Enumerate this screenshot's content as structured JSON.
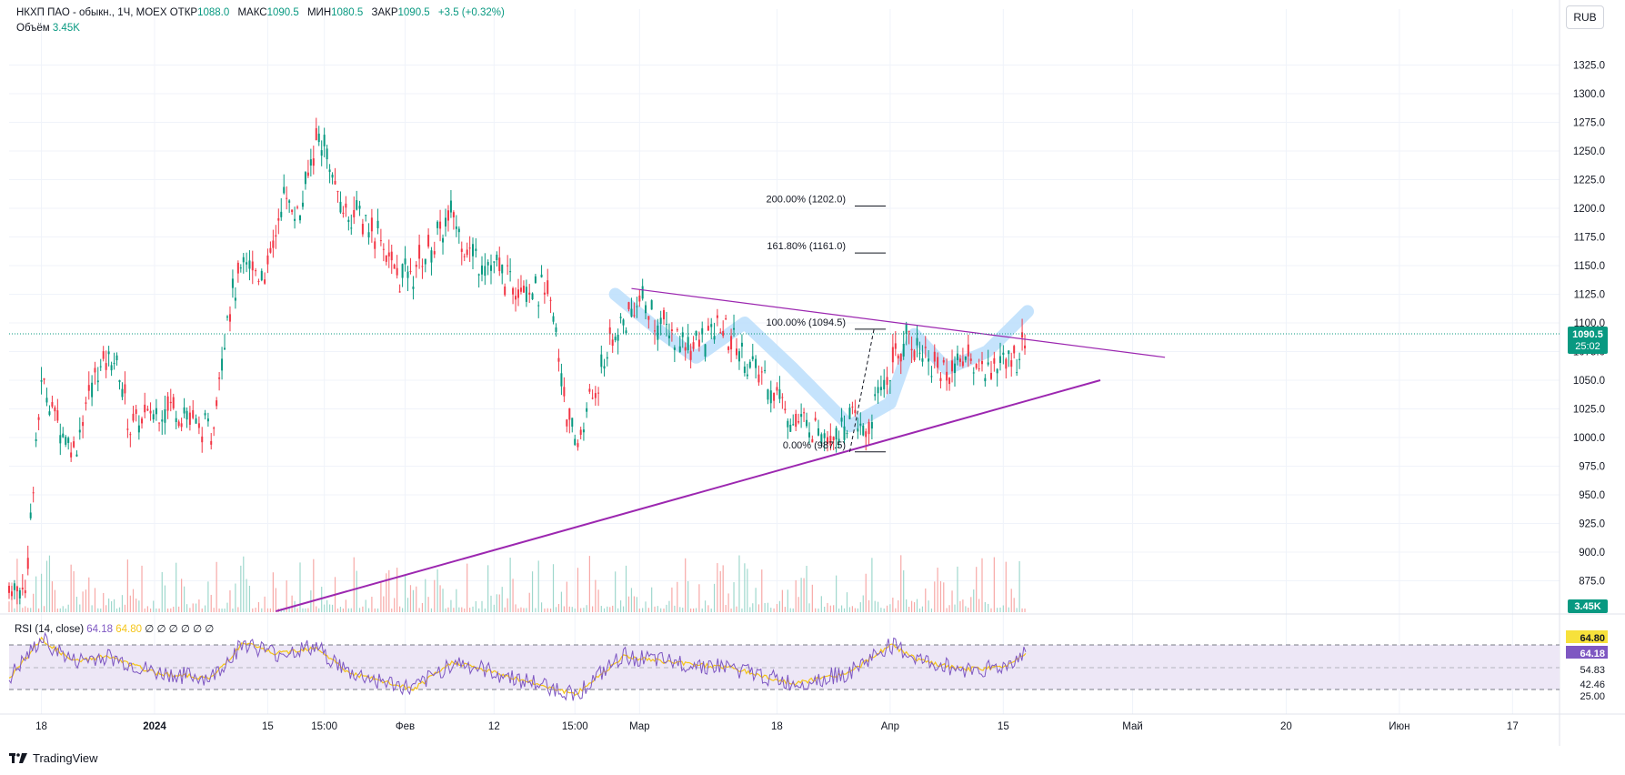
{
  "header": {
    "symbol": "НКХП ПАО - обыкн., 1Ч, MOEX",
    "open_label": "ОТКР",
    "open_value": "1088.0",
    "high_label": "МАКС",
    "high_value": "1090.5",
    "low_label": "МИН",
    "low_value": "1080.5",
    "close_label": "ЗАКР",
    "close_value": "1090.5",
    "change": "+3.5 (+0.32%)",
    "volume_label": "Объём",
    "volume_value": "3.45K"
  },
  "currency": "RUB",
  "rsi_legend": {
    "label": "RSI (14, close)",
    "rsi_value": "64.18",
    "ma_value": "64.80",
    "placeholders": "∅ ∅ ∅ ∅ ∅ ∅"
  },
  "brand": "TradingView",
  "colors": {
    "up": "#089981",
    "down": "#f23645",
    "trendline": "#9c27b0",
    "rsi_line": "#7e57c2",
    "rsi_ma": "#f5c518",
    "rsi_band": "#ede7f6",
    "highlight": "#bbdefb",
    "grid": "#f0f3fa",
    "price_badge": "#089981",
    "rsi_badge_ma": "#f7e13b",
    "rsi_badge_value": "#7e57c2"
  },
  "chart_data": {
    "type": "candlestick",
    "price_axis": {
      "ticks": [
        "1325.0",
        "1300.0",
        "1275.0",
        "1250.0",
        "1225.0",
        "1200.0",
        "1175.0",
        "1150.0",
        "1125.0",
        "1100.0",
        "1075.0",
        "1050.0",
        "1025.0",
        "1000.0",
        "975.0",
        "950.0",
        "925.0",
        "900.0",
        "875.0"
      ],
      "range": [
        850,
        1350
      ]
    },
    "time_axis": {
      "ticks": [
        "18",
        "2024",
        "15",
        "15:00",
        "Фев",
        "12",
        "15:00",
        "Мар",
        "18",
        "Апр",
        "15",
        "Май",
        "20",
        "Июн",
        "17"
      ]
    },
    "current_price": {
      "value": "1090.5",
      "timer": "25:02"
    },
    "volume_badge": "3.45K",
    "price_path": [
      [
        "2023-12-14",
        870
      ],
      [
        "2023-12-16",
        868
      ],
      [
        "2023-12-18",
        1050
      ],
      [
        "2023-12-20",
        1015
      ],
      [
        "2023-12-22",
        990
      ],
      [
        "2023-12-25",
        1060
      ],
      [
        "2023-12-27",
        1075
      ],
      [
        "2023-12-29",
        1010
      ],
      [
        "2024-01-03",
        1030
      ],
      [
        "2024-01-05",
        1020
      ],
      [
        "2024-01-08",
        1000
      ],
      [
        "2024-01-10",
        1110
      ],
      [
        "2024-01-12",
        1150
      ],
      [
        "2024-01-15",
        1145
      ],
      [
        "2024-01-17",
        1210
      ],
      [
        "2024-01-19",
        1195
      ],
      [
        "2024-01-21",
        1260
      ],
      [
        "2024-01-22",
        1255
      ],
      [
        "2024-01-24",
        1200
      ],
      [
        "2024-01-26",
        1195
      ],
      [
        "2024-01-29",
        1175
      ],
      [
        "2024-01-31",
        1140
      ],
      [
        "2024-02-02",
        1145
      ],
      [
        "2024-02-05",
        1175
      ],
      [
        "2024-02-07",
        1195
      ],
      [
        "2024-02-09",
        1160
      ],
      [
        "2024-02-12",
        1150
      ],
      [
        "2024-02-14",
        1135
      ],
      [
        "2024-02-16",
        1135
      ],
      [
        "2024-02-19",
        1120
      ],
      [
        "2024-02-21",
        1025
      ],
      [
        "2024-02-22",
        990
      ],
      [
        "2024-02-26",
        1075
      ],
      [
        "2024-02-28",
        1100
      ],
      [
        "2024-03-01",
        1120
      ],
      [
        "2024-03-04",
        1095
      ],
      [
        "2024-03-06",
        1085
      ],
      [
        "2024-03-08",
        1080
      ],
      [
        "2024-03-11",
        1095
      ],
      [
        "2024-03-13",
        1080
      ],
      [
        "2024-03-15",
        1060
      ],
      [
        "2024-03-18",
        1040
      ],
      [
        "2024-03-20",
        1015
      ],
      [
        "2024-03-22",
        1010
      ],
      [
        "2024-03-25",
        1005
      ],
      [
        "2024-03-27",
        1015
      ],
      [
        "2024-03-29",
        1005
      ],
      [
        "2024-04-01",
        1060
      ],
      [
        "2024-04-03",
        1090
      ],
      [
        "2024-04-05",
        1075
      ],
      [
        "2024-04-08",
        1055
      ],
      [
        "2024-04-10",
        1070
      ],
      [
        "2024-04-12",
        1060
      ],
      [
        "2024-04-15",
        1065
      ],
      [
        "2024-04-17",
        1075
      ],
      [
        "2024-04-18",
        1090
      ]
    ],
    "trendlines": [
      {
        "name": "upper",
        "from": [
          "2024-02-29",
          1130
        ],
        "to": [
          "2024-05-05",
          1070
        ]
      },
      {
        "name": "lower",
        "from": [
          "2024-01-16",
          850
        ],
        "to": [
          "2024-04-27",
          1050
        ]
      }
    ],
    "fibonacci": {
      "anchor_low": [
        "2024-03-27",
        987.5
      ],
      "anchor_high": [
        "2024-03-30",
        1094.5
      ],
      "levels": [
        {
          "label": "200.00% (1202.0)",
          "price": 1202.0
        },
        {
          "label": "161.80% (1161.0)",
          "price": 1161.0
        },
        {
          "label": "100.00% (1094.5)",
          "price": 1094.5
        },
        {
          "label": "0.00% (987.5)",
          "price": 987.5
        }
      ]
    },
    "rsi": {
      "axis_ticks": [
        "64.80",
        "64.18",
        "54.83",
        "42.46",
        "25.00"
      ],
      "upper_band": 70,
      "middle": 50,
      "lower_band": 30,
      "path": [
        [
          "2023-12-14",
          40
        ],
        [
          "2023-12-18",
          75
        ],
        [
          "2023-12-22",
          55
        ],
        [
          "2023-12-26",
          60
        ],
        [
          "2024-01-01",
          45
        ],
        [
          "2024-01-08",
          40
        ],
        [
          "2024-01-12",
          72
        ],
        [
          "2024-01-16",
          62
        ],
        [
          "2024-01-21",
          68
        ],
        [
          "2024-01-25",
          45
        ],
        [
          "2024-02-02",
          30
        ],
        [
          "2024-02-07",
          55
        ],
        [
          "2024-02-12",
          45
        ],
        [
          "2024-02-20",
          30
        ],
        [
          "2024-02-22",
          25
        ],
        [
          "2024-02-28",
          60
        ],
        [
          "2024-03-04",
          55
        ],
        [
          "2024-03-12",
          50
        ],
        [
          "2024-03-20",
          35
        ],
        [
          "2024-03-27",
          45
        ],
        [
          "2024-04-01",
          70
        ],
        [
          "2024-04-05",
          55
        ],
        [
          "2024-04-10",
          48
        ],
        [
          "2024-04-15",
          50
        ],
        [
          "2024-04-18",
          64
        ]
      ]
    }
  }
}
